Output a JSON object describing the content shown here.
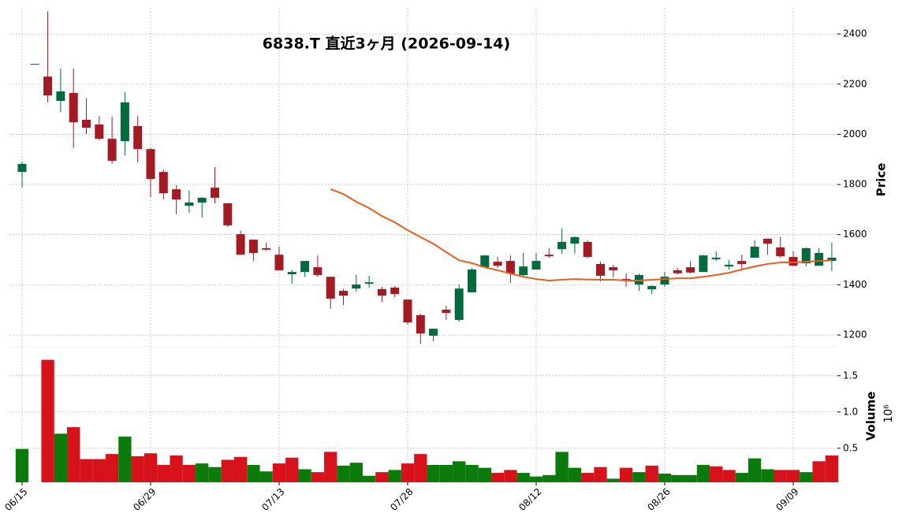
{
  "chart_data": {
    "type": "candlestick",
    "title": "6838.T  直近3ヶ月  (2026-09-14)",
    "categories": [
      "06/15",
      null,
      null,
      null,
      null,
      null,
      null,
      null,
      null,
      null,
      "06/29",
      null,
      null,
      null,
      null,
      null,
      null,
      null,
      null,
      null,
      "07/13",
      null,
      null,
      null,
      null,
      null,
      null,
      null,
      null,
      null,
      "07/28",
      null,
      null,
      null,
      null,
      null,
      null,
      null,
      null,
      null,
      "08/12",
      null,
      null,
      null,
      null,
      null,
      null,
      null,
      null,
      null,
      "08/26",
      null,
      null,
      null,
      null,
      null,
      null,
      null,
      null,
      null,
      "09/09",
      null,
      null,
      null
    ],
    "open": [
      1850,
      2281,
      2230,
      2133,
      2165,
      2058,
      2039,
      1982,
      1973,
      2033,
      1941,
      1850,
      1781,
      1715,
      1728,
      1787,
      1725,
      1602,
      1580,
      1546,
      1520,
      1442,
      1451,
      1470,
      1432,
      1376,
      1385,
      1404,
      1383,
      1389,
      1341,
      1279,
      1197,
      1301,
      1260,
      1370,
      1470,
      1492,
      1495,
      1439,
      1461,
      1520,
      1542,
      1564,
      1571,
      1483,
      1470,
      1423,
      1401,
      1382,
      1401,
      1458,
      1470,
      1451,
      1502,
      1473,
      1495,
      1508,
      1584,
      1549,
      1511,
      1486,
      1476,
      1495
    ],
    "high": [
      1891,
      2281,
      2490,
      2262,
      2262,
      2143,
      2073,
      2070,
      2168,
      2073,
      1945,
      1860,
      1797,
      1775,
      1750,
      1869,
      1725,
      1615,
      1580,
      1568,
      1552,
      1460,
      1495,
      1517,
      1432,
      1383,
      1439,
      1436,
      1392,
      1395,
      1341,
      1285,
      1225,
      1316,
      1401,
      1467,
      1517,
      1511,
      1517,
      1527,
      1527,
      1546,
      1624,
      1593,
      1577,
      1492,
      1480,
      1445,
      1445,
      1398,
      1451,
      1467,
      1495,
      1520,
      1533,
      1498,
      1520,
      1577,
      1584,
      1590,
      1533,
      1549,
      1546,
      1568
    ],
    "low": [
      1788,
      2281,
      2127,
      2089,
      1945,
      2001,
      1976,
      1882,
      1916,
      1888,
      1750,
      1740,
      1681,
      1687,
      1668,
      1725,
      1630,
      1520,
      1495,
      1536,
      1458,
      1404,
      1432,
      1432,
      1304,
      1319,
      1373,
      1389,
      1332,
      1351,
      1241,
      1165,
      1175,
      1260,
      1253,
      1370,
      1470,
      1467,
      1407,
      1429,
      1461,
      1508,
      1524,
      1524,
      1505,
      1414,
      1429,
      1392,
      1376,
      1363,
      1392,
      1442,
      1445,
      1451,
      1495,
      1461,
      1464,
      1508,
      1520,
      1508,
      1476,
      1473,
      1476,
      1454
    ],
    "close": [
      1882,
      2281,
      2155,
      2171,
      2048,
      2026,
      1982,
      1894,
      2127,
      1941,
      1822,
      1765,
      1740,
      1728,
      1747,
      1747,
      1637,
      1520,
      1527,
      1540,
      1458,
      1451,
      1495,
      1439,
      1345,
      1357,
      1401,
      1410,
      1357,
      1363,
      1250,
      1206,
      1225,
      1288,
      1385,
      1461,
      1517,
      1476,
      1445,
      1473,
      1495,
      1514,
      1571,
      1590,
      1511,
      1436,
      1458,
      1417,
      1439,
      1395,
      1432,
      1446,
      1449,
      1517,
      1508,
      1480,
      1483,
      1552,
      1564,
      1514,
      1476,
      1546,
      1527,
      1508
    ],
    "volume": [
      0.49,
      0,
      1.72,
      0.7,
      0.79,
      0.35,
      0.35,
      0.42,
      0.66,
      0.39,
      0.43,
      0.27,
      0.4,
      0.27,
      0.29,
      0.24,
      0.34,
      0.38,
      0.27,
      0.18,
      0.29,
      0.37,
      0.21,
      0.17,
      0.45,
      0.26,
      0.3,
      0.12,
      0.17,
      0.2,
      0.29,
      0.42,
      0.27,
      0.27,
      0.32,
      0.27,
      0.23,
      0.16,
      0.2,
      0.16,
      0.11,
      0.13,
      0.45,
      0.23,
      0.16,
      0.24,
      0.08,
      0.23,
      0.17,
      0.26,
      0.15,
      0.13,
      0.13,
      0.27,
      0.25,
      0.2,
      0.16,
      0.36,
      0.21,
      0.2,
      0.2,
      0.17,
      0.32,
      0.4
    ],
    "moving_average": {
      "color": "#f05a1a",
      "values": [
        null,
        null,
        null,
        null,
        null,
        null,
        null,
        null,
        null,
        null,
        null,
        null,
        null,
        null,
        null,
        null,
        null,
        null,
        null,
        null,
        null,
        null,
        null,
        null,
        1781,
        1762,
        1731,
        1706,
        1674,
        1649,
        1618,
        1590,
        1564,
        1530,
        1498,
        1486,
        1470,
        1458,
        1445,
        1432,
        1423,
        1417,
        1420,
        1423,
        1421,
        1420,
        1420,
        1417,
        1417,
        1420,
        1423,
        1426,
        1426,
        1432,
        1439,
        1448,
        1461,
        1473,
        1483,
        1489,
        1489,
        1492,
        1495,
        1498
      ]
    },
    "up_color": "#006b3c",
    "down_color": "#a31a23",
    "volume_up_color": "#0a7a0a",
    "volume_down_color": "#d8121b",
    "ylim": [
      1153,
      2504
    ],
    "yticks": [
      1200,
      1400,
      1600,
      1800,
      2000,
      2200,
      2400
    ],
    "y_label": "Price",
    "volume_ylim": [
      0.03,
      1.9
    ],
    "volume_yticks": [
      0.5,
      {
        "value": 1.0,
        "label": "1.0"
      },
      1.5
    ],
    "volume_label": "Volume",
    "volume_offset": "10⁶",
    "grid": true
  }
}
